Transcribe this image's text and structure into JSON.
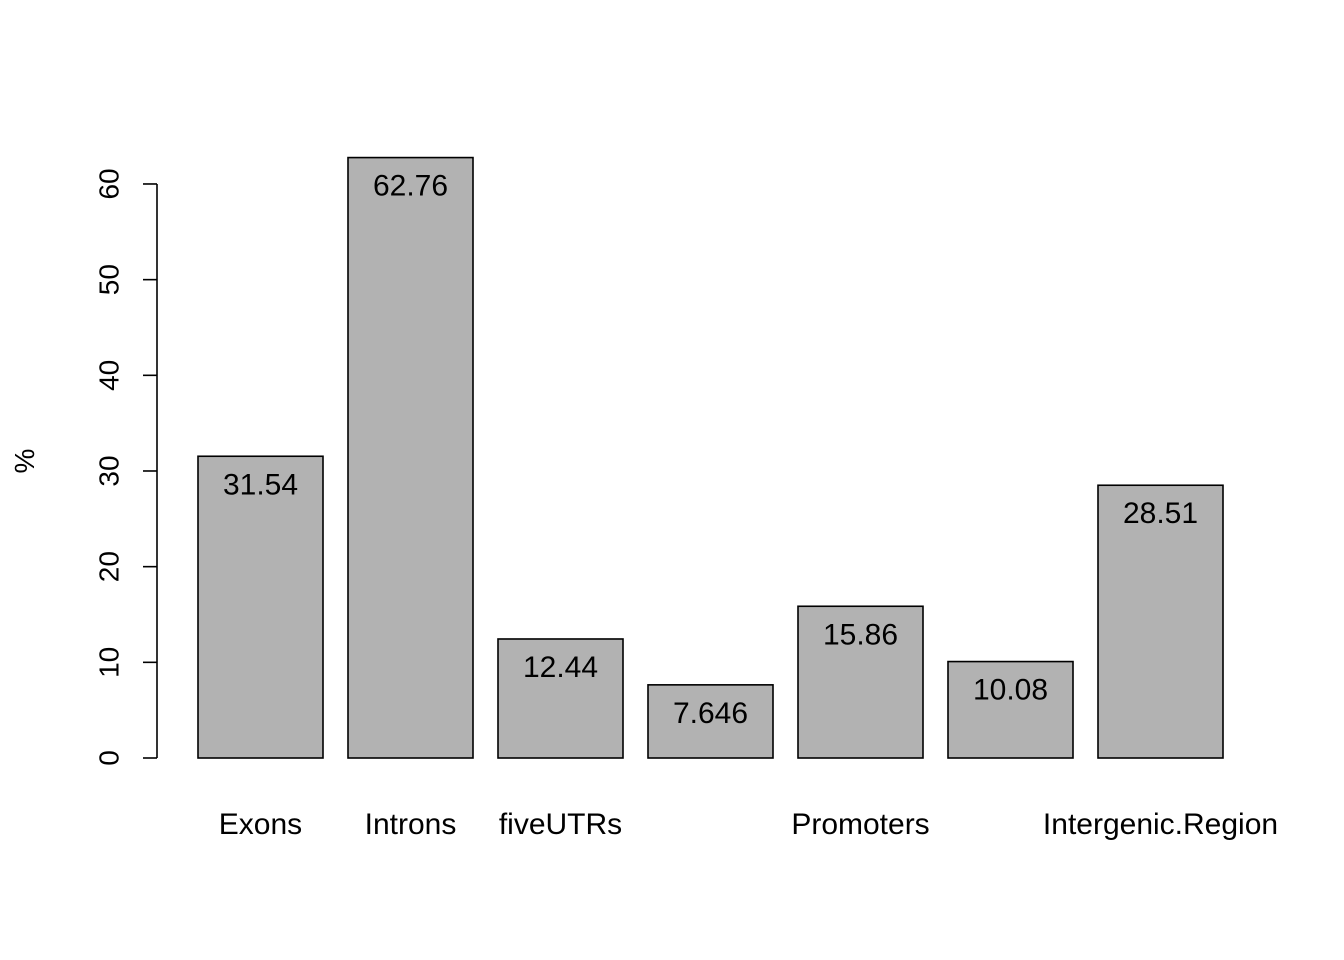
{
  "chart_data": {
    "type": "bar",
    "title": "",
    "xlabel": "",
    "ylabel": "%",
    "ylim": [
      0,
      60
    ],
    "yticks": [
      0,
      10,
      20,
      30,
      40,
      50,
      60
    ],
    "categories": [
      "Exons",
      "Introns",
      "fiveUTRs",
      "",
      "Promoters",
      "",
      "Intergenic.Region"
    ],
    "values": [
      31.54,
      62.76,
      12.44,
      7.646,
      15.86,
      10.08,
      28.51
    ],
    "data_labels": [
      "31.54",
      "62.76",
      "12.44",
      "7.646",
      "15.86",
      "10.08",
      "28.51"
    ],
    "bar_color": "#b2b2b2",
    "grid": false,
    "legend": "none"
  }
}
